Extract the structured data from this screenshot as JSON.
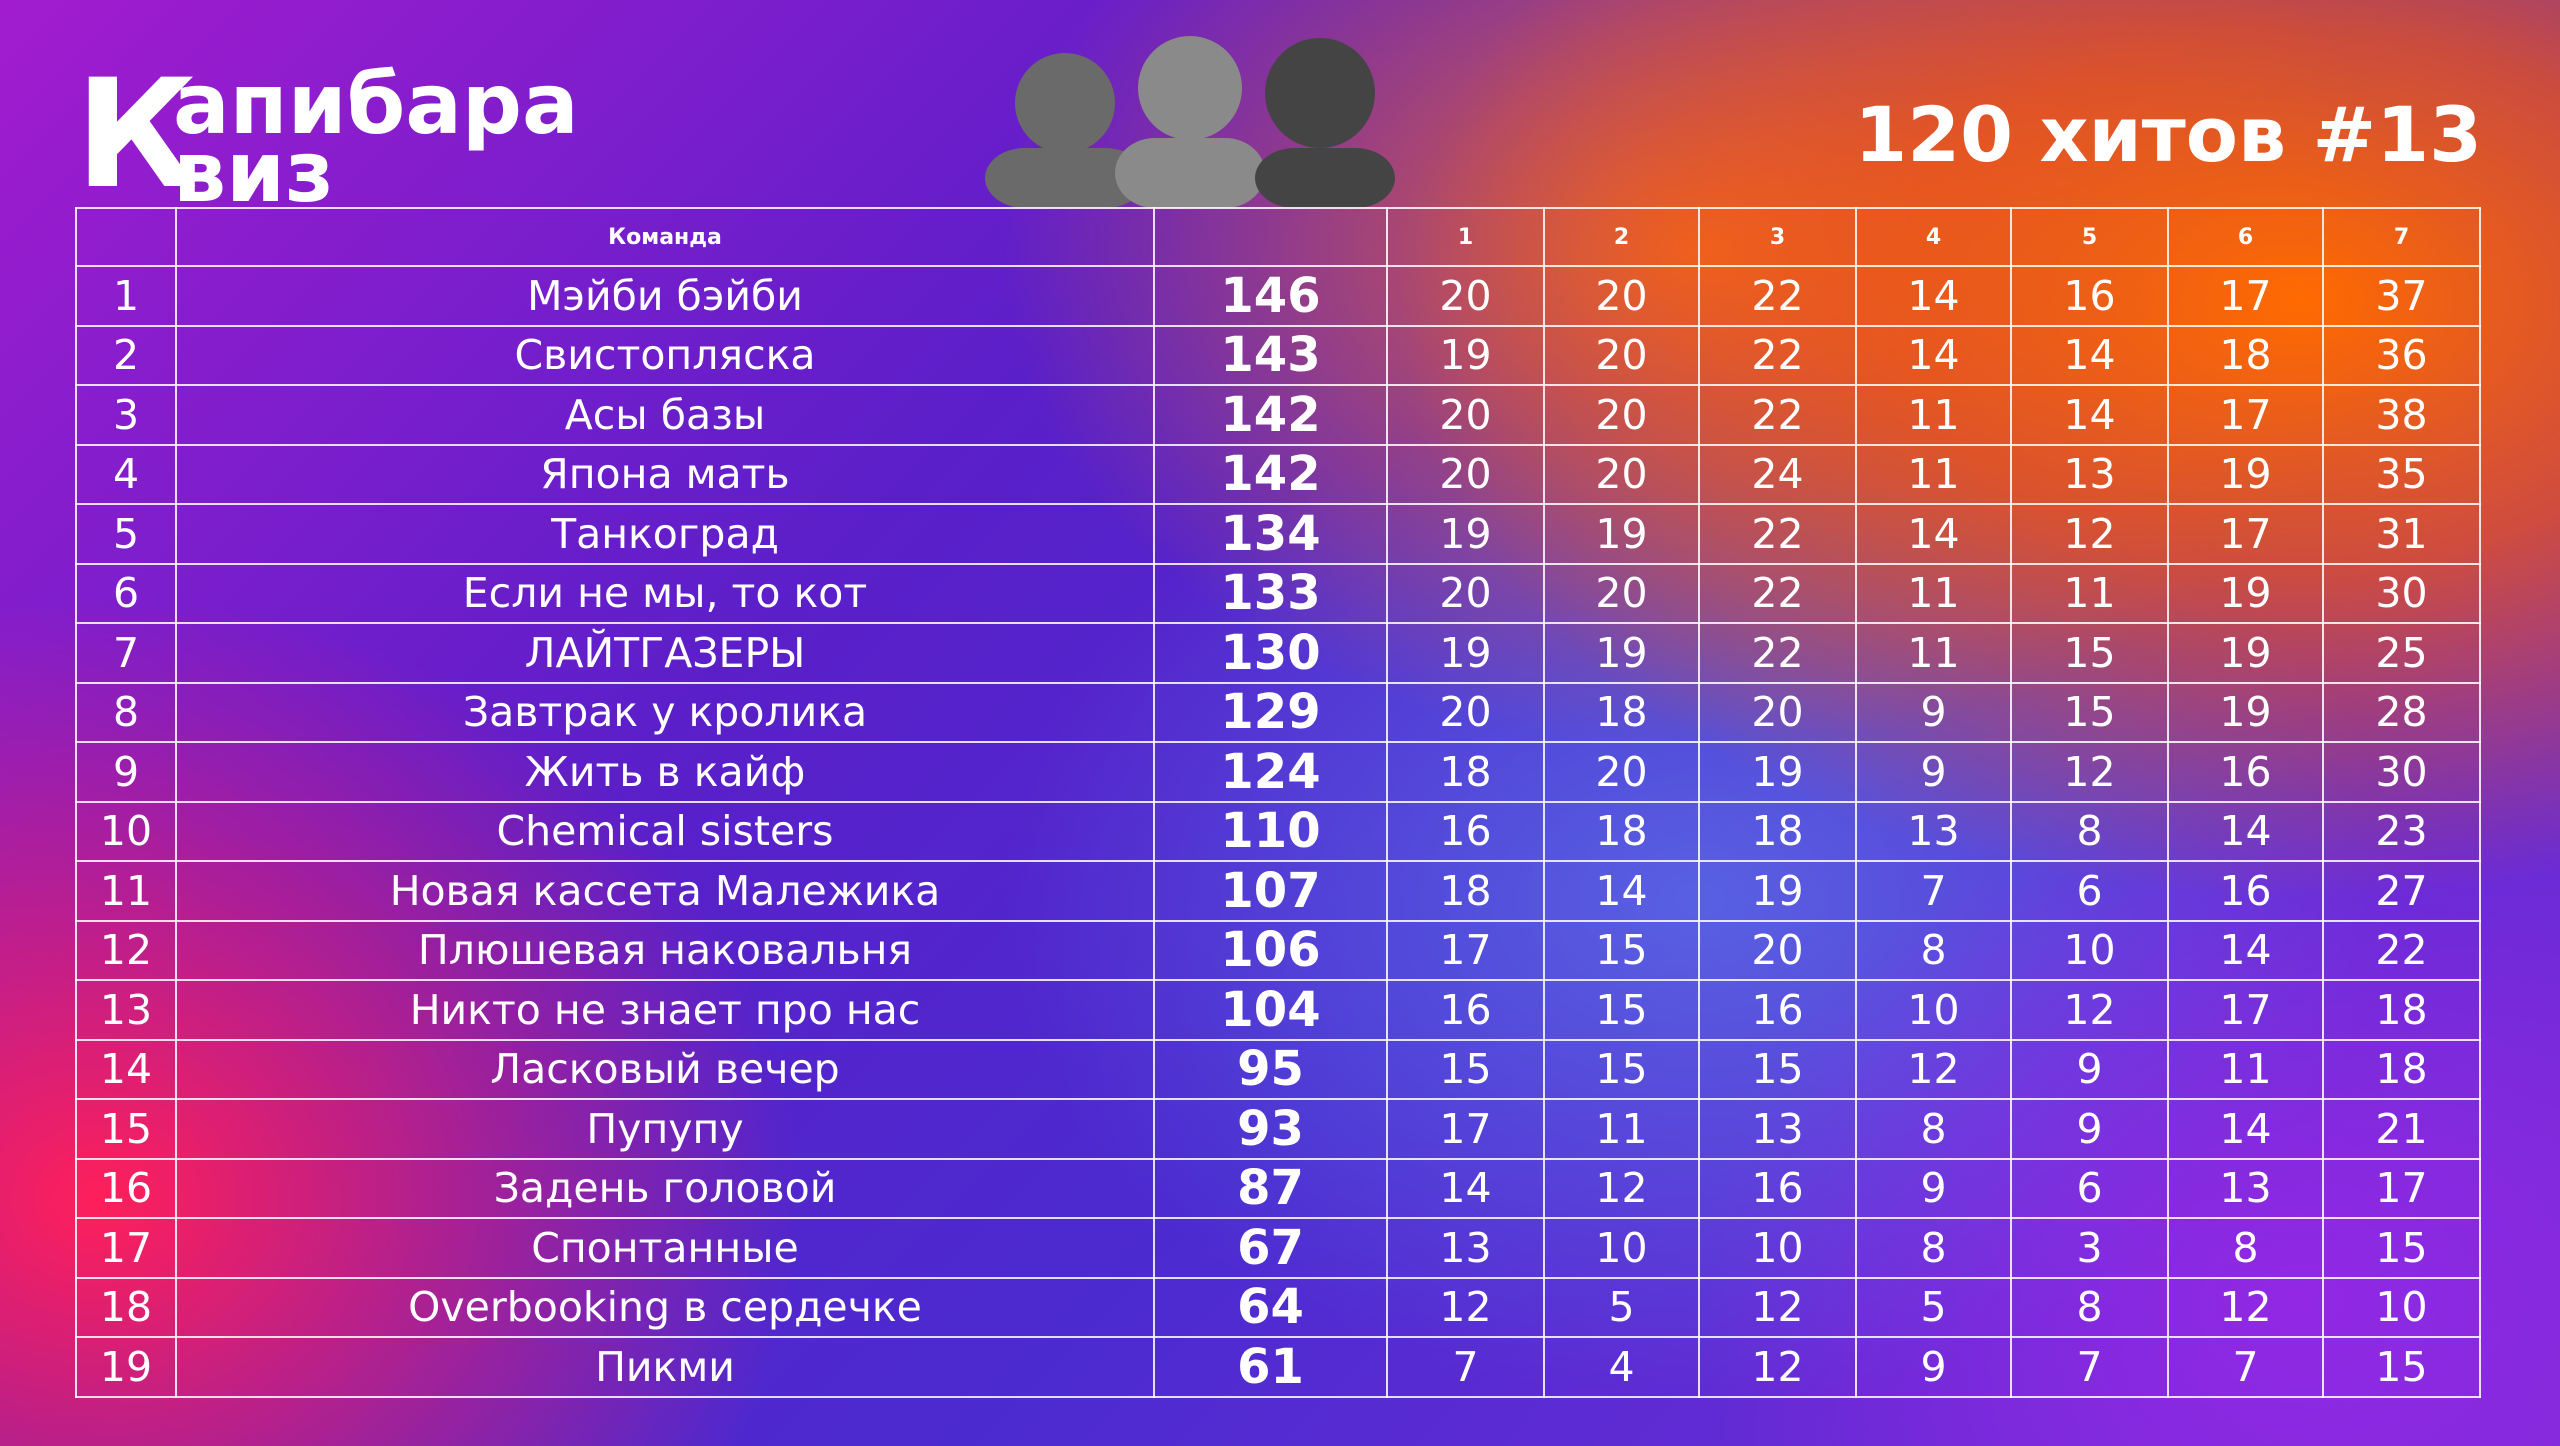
{
  "header": {
    "logo": {
      "initial": "К",
      "top": "апибара",
      "bottom": "виз"
    },
    "title": "120 хитов #13"
  },
  "table": {
    "columns": {
      "team": "Команда",
      "rounds": [
        "1",
        "2",
        "3",
        "4",
        "5",
        "6",
        "7"
      ]
    },
    "rows": [
      [
        1,
        "Мэйби бэйби",
        146,
        20,
        20,
        22,
        14,
        16,
        17,
        37
      ],
      [
        2,
        "Свистопляска",
        143,
        19,
        20,
        22,
        14,
        14,
        18,
        36
      ],
      [
        3,
        "Асы базы",
        142,
        20,
        20,
        22,
        11,
        14,
        17,
        38
      ],
      [
        4,
        "Япона мать",
        142,
        20,
        20,
        24,
        11,
        13,
        19,
        35
      ],
      [
        5,
        "Танкоград",
        134,
        19,
        19,
        22,
        14,
        12,
        17,
        31
      ],
      [
        6,
        "Если не мы, то кот",
        133,
        20,
        20,
        22,
        11,
        11,
        19,
        30
      ],
      [
        7,
        "ЛАЙТГАЗЕРЫ",
        130,
        19,
        19,
        22,
        11,
        15,
        19,
        25
      ],
      [
        8,
        "Завтрак у кролика",
        129,
        20,
        18,
        20,
        9,
        15,
        19,
        28
      ],
      [
        9,
        "Жить в кайф",
        124,
        18,
        20,
        19,
        9,
        12,
        16,
        30
      ],
      [
        10,
        "Chemical sisters",
        110,
        16,
        18,
        18,
        13,
        8,
        14,
        23
      ],
      [
        11,
        "Новая кассета Малежика",
        107,
        18,
        14,
        19,
        7,
        6,
        16,
        27
      ],
      [
        12,
        "Плюшевая наковальня",
        106,
        17,
        15,
        20,
        8,
        10,
        14,
        22
      ],
      [
        13,
        "Никто не знает про нас",
        104,
        16,
        15,
        16,
        10,
        12,
        17,
        18
      ],
      [
        14,
        "Ласковый вечер",
        95,
        15,
        15,
        15,
        12,
        9,
        11,
        18
      ],
      [
        15,
        "Пупупу",
        93,
        17,
        11,
        13,
        8,
        9,
        14,
        21
      ],
      [
        16,
        "Задень головой",
        87,
        14,
        12,
        16,
        9,
        6,
        13,
        17
      ],
      [
        17,
        "Спонтанные",
        67,
        13,
        10,
        10,
        8,
        3,
        8,
        15
      ],
      [
        18,
        "Overbooking в сердечке",
        64,
        12,
        5,
        12,
        5,
        8,
        12,
        10
      ],
      [
        19,
        "Пикми",
        61,
        7,
        4,
        12,
        9,
        7,
        7,
        15
      ]
    ]
  }
}
